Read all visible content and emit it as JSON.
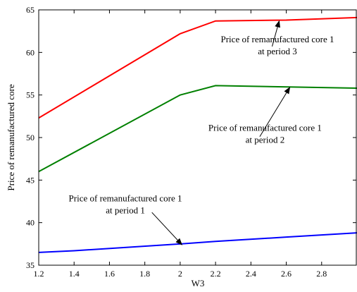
{
  "chart_data": {
    "type": "line",
    "xlabel": "W3",
    "ylabel": "Price of remanufactured core",
    "xlim": [
      1.2,
      3.0
    ],
    "ylim": [
      35,
      65
    ],
    "xticks": [
      1.2,
      1.4,
      1.6,
      1.8,
      2.0,
      2.2,
      2.4,
      2.6,
      2.8
    ],
    "xtick_labels": [
      "1.2",
      "1.4",
      "1.6",
      "1.8",
      "2",
      "2.2",
      "2.4",
      "2.6",
      "2.8"
    ],
    "yticks": [
      35,
      40,
      45,
      50,
      55,
      60,
      65
    ],
    "ytick_labels": [
      "35",
      "40",
      "45",
      "50",
      "55",
      "60",
      "65"
    ],
    "grid": false,
    "series": [
      {
        "color": "#0000ff",
        "x": [
          1.2,
          1.4,
          2.0,
          2.2,
          2.6,
          3.0
        ],
        "y": [
          36.5,
          36.7,
          37.5,
          37.8,
          38.3,
          38.8
        ]
      },
      {
        "color": "#008000",
        "x": [
          1.2,
          2.0,
          2.2,
          3.0
        ],
        "y": [
          46.0,
          55.0,
          56.1,
          55.8
        ]
      },
      {
        "color": "#ff0000",
        "x": [
          1.2,
          2.0,
          2.2,
          2.6,
          3.0
        ],
        "y": [
          52.3,
          62.2,
          63.7,
          63.8,
          64.1
        ]
      }
    ],
    "annotations": [
      {
        "lines": [
          "Price of remanufactured core 1",
          "at period 3"
        ],
        "text_at": [
          2.55,
          61.2
        ],
        "arrow_from": [
          2.52,
          60.7
        ],
        "arrow_to": [
          2.56,
          63.7
        ]
      },
      {
        "lines": [
          "Price of remanufactured core 1",
          "at period 2"
        ],
        "text_at": [
          2.48,
          50.8
        ],
        "arrow_from": [
          2.45,
          50.1
        ],
        "arrow_to": [
          2.62,
          55.9
        ]
      },
      {
        "lines": [
          "Price of remanufactured core 1",
          "at period 1"
        ],
        "text_at": [
          1.69,
          42.5
        ],
        "arrow_from": [
          1.84,
          41.2
        ],
        "arrow_to": [
          2.01,
          37.4
        ]
      }
    ]
  }
}
